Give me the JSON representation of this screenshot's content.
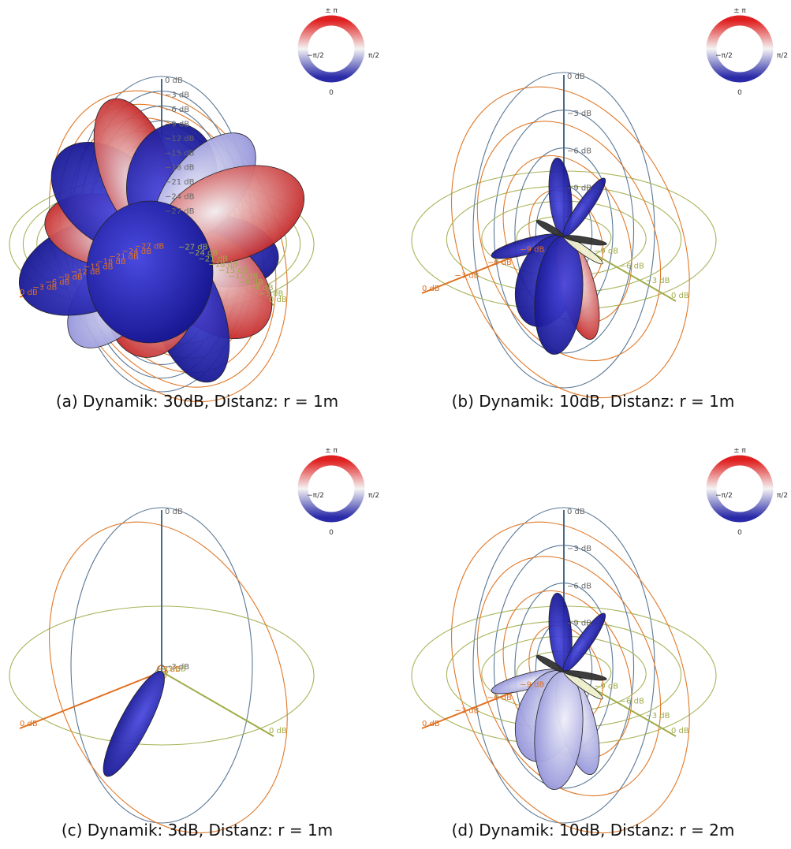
{
  "panels": [
    {
      "caption": "(a) Dynamik: 30dB, Distanz: r = 1m",
      "wheel": {
        "top": "± π",
        "left": "−π/2",
        "right": "π/2",
        "bottom": "0"
      },
      "rings": [
        "0 dB",
        "−3 dB",
        "−6 dB",
        "−9 dB",
        "−12 dB",
        "−15 dB",
        "−18 dB",
        "−21 dB",
        "−24 dB",
        "−27 dB"
      ]
    },
    {
      "caption": "(b) Dynamik: 10dB, Distanz: r = 1m",
      "wheel": {
        "top": "± π",
        "left": "−π/2",
        "right": "π/2",
        "bottom": "0"
      },
      "rings": [
        "0 dB",
        "−3 dB",
        "−6 dB",
        "−9 dB"
      ]
    },
    {
      "caption": "(c) Dynamik: 3dB, Distanz: r = 1m",
      "wheel": {
        "top": "± π",
        "left": "−π/2",
        "right": "π/2",
        "bottom": "0"
      },
      "rings": [
        "0 dB",
        "−3 dB"
      ]
    },
    {
      "caption": "(d) Dynamik: 10dB, Distanz: r = 2m",
      "wheel": {
        "top": "± π",
        "left": "−π/2",
        "right": "π/2",
        "bottom": "0"
      },
      "rings": [
        "0 dB",
        "−3 dB",
        "−6 dB",
        "−9 dB"
      ]
    }
  ]
}
